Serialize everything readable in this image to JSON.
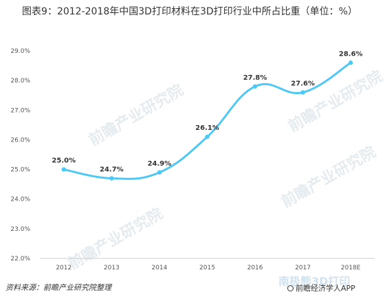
{
  "title": "图表9：2012-2018年中国3D打印材料在3D打印行业中所占比重（单位：%）",
  "source": "资料来源：前瞻产业研究院整理",
  "brand": "前瞻经济学人APP",
  "watermark_text": "前瞻产业研究院",
  "watermark_bottom": "南极熊3D打印",
  "chart_data": {
    "type": "line",
    "title": "图表9：2012-2018年中国3D打印材料在3D打印行业中所占比重（单位：%）",
    "xlabel": "",
    "ylabel": "",
    "categories": [
      "2012",
      "2013",
      "2014",
      "2015",
      "2016",
      "2017",
      "2018E"
    ],
    "values": [
      25.0,
      24.7,
      24.9,
      26.1,
      27.8,
      27.6,
      28.6
    ],
    "data_labels": [
      "25.0%",
      "24.7%",
      "24.9%",
      "26.1%",
      "27.8%",
      "27.6%",
      "28.6%"
    ],
    "yticks": [
      "22.0%",
      "23.0%",
      "24.0%",
      "25.0%",
      "26.0%",
      "27.0%",
      "28.0%",
      "29.0%"
    ],
    "ylim": [
      22,
      29
    ],
    "line_color": "#4ec8f4",
    "grid": false,
    "legend": "none"
  }
}
